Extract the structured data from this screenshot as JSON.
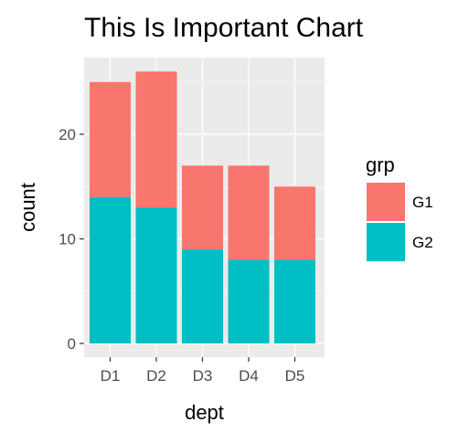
{
  "chart_data": {
    "type": "bar",
    "stacked": true,
    "title": "This Is Important Chart",
    "xlabel": "dept",
    "ylabel": "count",
    "categories": [
      "D1",
      "D2",
      "D3",
      "D4",
      "D5"
    ],
    "series": [
      {
        "name": "G1",
        "values": [
          11,
          13,
          8,
          9,
          7
        ],
        "color": "#F8766D"
      },
      {
        "name": "G2",
        "values": [
          14,
          13,
          9,
          8,
          8
        ],
        "color": "#00BFC4"
      }
    ],
    "ylim": [
      0,
      27
    ],
    "yticks": [
      0,
      10,
      20
    ],
    "grid": true,
    "panel_background": "#EBEBEB",
    "legend": {
      "title": "grp",
      "position": "right"
    }
  }
}
